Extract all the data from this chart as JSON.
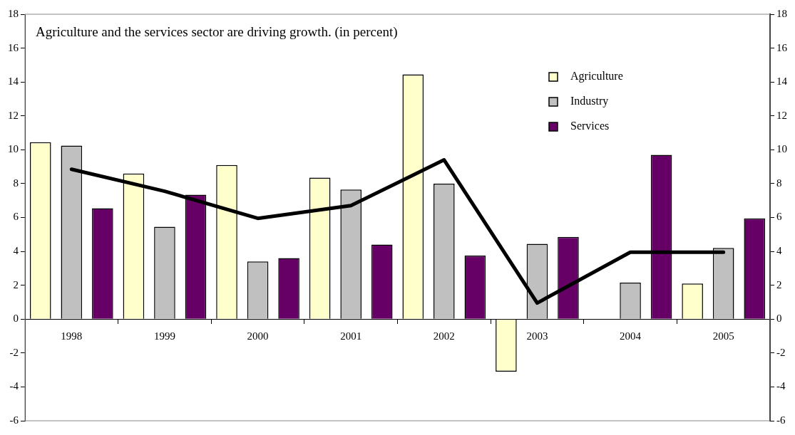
{
  "chart_data": {
    "type": "bar",
    "title": "Agriculture and the services sector are driving growth. (in percent)",
    "categories": [
      "1998",
      "1999",
      "2000",
      "2001",
      "2002",
      "2003",
      "2004",
      "2005"
    ],
    "series": [
      {
        "name": "Agriculture",
        "color": "#ffffcc",
        "values": [
          10.45,
          8.6,
          9.1,
          8.35,
          14.45,
          -3.1,
          0,
          2.1
        ]
      },
      {
        "name": "Industry",
        "color": "#c0c0c0",
        "values": [
          10.25,
          5.45,
          3.4,
          7.65,
          8.0,
          4.45,
          2.15,
          4.2
        ]
      },
      {
        "name": "Services",
        "color": "#660066",
        "values": [
          6.55,
          7.35,
          3.6,
          4.4,
          3.75,
          4.85,
          9.7,
          5.95
        ]
      },
      {
        "type": "line",
        "color": "#000000",
        "values": [
          8.85,
          7.55,
          5.95,
          6.7,
          9.4,
          0.95,
          3.95,
          3.95
        ]
      }
    ],
    "ylim": [
      -6,
      18
    ],
    "yticks": [
      -6,
      -4,
      -2,
      0,
      2,
      4,
      6,
      8,
      10,
      12,
      14,
      16,
      18
    ],
    "y2lim": [
      -6,
      18
    ],
    "y2ticks": [
      -6,
      -4,
      -2,
      0,
      2,
      4,
      6,
      8,
      10,
      12,
      14,
      16,
      18
    ],
    "legend": "top right",
    "grid": false
  }
}
